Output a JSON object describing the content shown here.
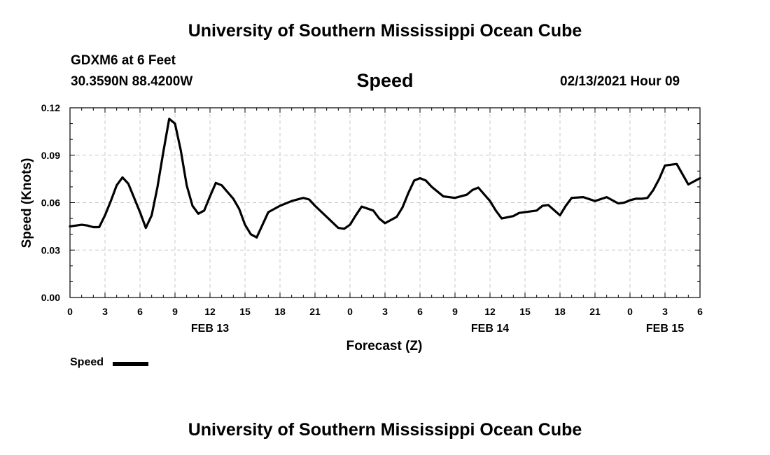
{
  "header": {
    "title": "University of Southern Mississippi Ocean Cube",
    "station": "GDXM6 at 6 Feet",
    "coordinates": "30.3590N 88.4200W",
    "datetime": "02/13/2021 Hour 09"
  },
  "footer": {
    "title": "University of Southern Mississippi Ocean Cube"
  },
  "legend": {
    "label": "Speed",
    "color": "#000000"
  },
  "chart_data": {
    "type": "line",
    "title": "Speed",
    "xlabel": "Forecast (Z)",
    "ylabel": "Speed (Knots)",
    "xlim": [
      0,
      54
    ],
    "ylim": [
      0.0,
      0.12
    ],
    "grid": true,
    "x_ticks": [
      0,
      3,
      6,
      9,
      12,
      15,
      18,
      21,
      24,
      27,
      30,
      33,
      36,
      39,
      42,
      45,
      48,
      51,
      54
    ],
    "x_tick_labels": [
      "0",
      "3",
      "6",
      "9",
      "12",
      "15",
      "18",
      "21",
      "0",
      "3",
      "6",
      "9",
      "12",
      "15",
      "18",
      "21",
      "0",
      "3",
      "6"
    ],
    "date_labels": [
      {
        "x": 12,
        "label": "FEB 13"
      },
      {
        "x": 36,
        "label": "FEB 14"
      },
      {
        "x": 51,
        "label": "FEB 15"
      }
    ],
    "y_ticks": [
      0.0,
      0.03,
      0.06,
      0.09,
      0.12
    ],
    "y_tick_labels": [
      "0.00",
      "0.03",
      "0.06",
      "0.09",
      "0.12"
    ],
    "series": [
      {
        "name": "Speed",
        "color": "#000000",
        "x": [
          0,
          1,
          1.5,
          2,
          2.5,
          3,
          3.5,
          4,
          4.5,
          5,
          6,
          6.5,
          7,
          7.5,
          8,
          8.5,
          9,
          9.5,
          10,
          10.5,
          11,
          11.5,
          12,
          12.5,
          13,
          14,
          14.5,
          15,
          15.5,
          16,
          17,
          18,
          19,
          20,
          20.5,
          21,
          22,
          23,
          23.5,
          24,
          24.5,
          25,
          26,
          26.5,
          27,
          28,
          28.5,
          29,
          29.5,
          30,
          30.5,
          31,
          32,
          33,
          34,
          34.5,
          35,
          36,
          36.5,
          37,
          38,
          38.5,
          39,
          40,
          40.5,
          41,
          42,
          42.5,
          43,
          44,
          45,
          46,
          47,
          47.5,
          48,
          48.5,
          49,
          49.5,
          50,
          50.5,
          51,
          52,
          53,
          54
        ],
        "values": [
          0.045,
          0.046,
          0.0455,
          0.0445,
          0.0445,
          0.052,
          0.061,
          0.071,
          0.076,
          0.072,
          0.054,
          0.044,
          0.052,
          0.07,
          0.092,
          0.113,
          0.11,
          0.093,
          0.071,
          0.058,
          0.053,
          0.055,
          0.064,
          0.0725,
          0.071,
          0.0625,
          0.056,
          0.046,
          0.04,
          0.038,
          0.054,
          0.058,
          0.061,
          0.063,
          0.062,
          0.058,
          0.051,
          0.044,
          0.0435,
          0.046,
          0.052,
          0.0575,
          0.055,
          0.05,
          0.047,
          0.051,
          0.057,
          0.066,
          0.074,
          0.0755,
          0.074,
          0.07,
          0.064,
          0.063,
          0.065,
          0.068,
          0.0695,
          0.061,
          0.055,
          0.05,
          0.0515,
          0.0535,
          0.054,
          0.055,
          0.058,
          0.0585,
          0.052,
          0.058,
          0.063,
          0.0635,
          0.061,
          0.0635,
          0.0595,
          0.06,
          0.0615,
          0.0625,
          0.0625,
          0.063,
          0.068,
          0.075,
          0.0835,
          0.0845,
          0.0715,
          0.0755
        ]
      }
    ]
  }
}
